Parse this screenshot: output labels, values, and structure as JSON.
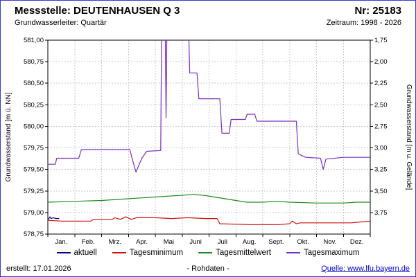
{
  "header": {
    "title": "Messstelle: DEUTENHAUSEN Q 3",
    "number": "Nr: 25183",
    "aquifer": "Grundwasserleiter: Quartär",
    "period": "Zeitraum: 1998 - 2026"
  },
  "footer": {
    "created": "erstellt: 17.01.2026",
    "center": "- Rohdaten -",
    "source": "Quelle: www.lfu.bayern.de"
  },
  "colors": {
    "frame": "#3939cc",
    "link": "#0000cc",
    "grid": "#c9c9c9",
    "axis": "#000000"
  },
  "chart_data": {
    "type": "line",
    "title": "",
    "x_axis": {
      "tick_labels": [
        "Jan.",
        "Feb.",
        "Mrz.",
        "Apr.",
        "Mai",
        "Juni",
        "Juli",
        "Aug.",
        "Sept.",
        "Okt.",
        "Nov.",
        "Dez."
      ],
      "range_months": [
        0,
        12
      ]
    },
    "y_axis_left": {
      "label": "Grundwasserstand [m ü. NN]",
      "range": [
        578.75,
        581.0
      ],
      "tick_step": 0.25,
      "tick_labels": [
        "581,00",
        "580,75",
        "580,50",
        "580,25",
        "580,00",
        "579,75",
        "579,50",
        "579,25",
        "579,00",
        "578,75"
      ]
    },
    "y_axis_right": {
      "label": "Grundwasserstand [m u. Gelände]",
      "tick_labels": [
        "1,75",
        "2,00",
        "2,25",
        "2,50",
        "2,75",
        "3,00",
        "3,25",
        "3,50",
        "3,75"
      ]
    },
    "grid": true,
    "legend_position": "bottom",
    "series": [
      {
        "name": "aktuell",
        "color": "#00008b",
        "points": [
          [
            0.02,
            578.92
          ],
          [
            0.08,
            578.95
          ],
          [
            0.12,
            578.93
          ],
          [
            0.2,
            578.94
          ],
          [
            0.3,
            578.93
          ],
          [
            0.42,
            578.93
          ]
        ]
      },
      {
        "name": "Tagesminimum",
        "color": "#cc1111",
        "points": [
          [
            0,
            578.91
          ],
          [
            0.5,
            578.9
          ],
          [
            1.6,
            578.9
          ],
          [
            1.7,
            578.92
          ],
          [
            2.4,
            578.92
          ],
          [
            2.5,
            578.94
          ],
          [
            2.7,
            578.92
          ],
          [
            2.9,
            578.95
          ],
          [
            3.1,
            578.92
          ],
          [
            3.3,
            578.94
          ],
          [
            4.0,
            578.94
          ],
          [
            4.6,
            578.93
          ],
          [
            5.2,
            578.94
          ],
          [
            5.9,
            578.93
          ],
          [
            6.3,
            578.93
          ],
          [
            6.4,
            578.87
          ],
          [
            7.5,
            578.86
          ],
          [
            8.6,
            578.86
          ],
          [
            9.0,
            578.87
          ],
          [
            9.1,
            578.9
          ],
          [
            9.25,
            578.87
          ],
          [
            9.4,
            578.88
          ],
          [
            10.5,
            578.88
          ],
          [
            11.3,
            578.88
          ],
          [
            11.6,
            578.89
          ],
          [
            12,
            578.9
          ]
        ]
      },
      {
        "name": "Tagesmittelwert",
        "color": "#1e8a1e",
        "points": [
          [
            0,
            579.12
          ],
          [
            1.0,
            579.13
          ],
          [
            2.0,
            579.14
          ],
          [
            3.0,
            579.16
          ],
          [
            3.5,
            579.17
          ],
          [
            4.0,
            579.18
          ],
          [
            4.5,
            579.19
          ],
          [
            5.0,
            579.2
          ],
          [
            5.4,
            579.21
          ],
          [
            5.8,
            579.2
          ],
          [
            6.2,
            579.18
          ],
          [
            6.6,
            579.16
          ],
          [
            7.0,
            579.14
          ],
          [
            7.4,
            579.12
          ],
          [
            8.0,
            579.12
          ],
          [
            8.5,
            579.13
          ],
          [
            9.0,
            579.12
          ],
          [
            10.0,
            579.11
          ],
          [
            11.0,
            579.11
          ],
          [
            11.5,
            579.12
          ],
          [
            12,
            579.12
          ]
        ]
      },
      {
        "name": "Tagesmaximum",
        "color": "#7b2fbe",
        "points": [
          [
            0,
            579.56
          ],
          [
            0.28,
            579.56
          ],
          [
            0.33,
            579.63
          ],
          [
            1.15,
            579.63
          ],
          [
            1.25,
            579.73
          ],
          [
            3.05,
            579.73
          ],
          [
            3.18,
            579.58
          ],
          [
            3.28,
            579.47
          ],
          [
            3.5,
            579.63
          ],
          [
            3.68,
            579.71
          ],
          [
            4.2,
            579.72
          ],
          [
            4.24,
            581.4
          ],
          [
            4.36,
            581.4
          ],
          [
            4.4,
            580.1
          ],
          [
            4.44,
            581.4
          ],
          [
            5.22,
            581.4
          ],
          [
            5.28,
            580.62
          ],
          [
            5.55,
            580.62
          ],
          [
            5.62,
            580.32
          ],
          [
            6.4,
            580.32
          ],
          [
            6.48,
            579.92
          ],
          [
            6.75,
            579.92
          ],
          [
            6.82,
            580.08
          ],
          [
            7.35,
            580.08
          ],
          [
            7.42,
            580.14
          ],
          [
            7.7,
            580.14
          ],
          [
            7.78,
            580.06
          ],
          [
            9.25,
            580.06
          ],
          [
            9.32,
            579.68
          ],
          [
            9.6,
            579.64
          ],
          [
            10.15,
            579.63
          ],
          [
            10.25,
            579.5
          ],
          [
            10.35,
            579.62
          ],
          [
            11.0,
            579.64
          ],
          [
            12,
            579.64
          ]
        ]
      }
    ]
  }
}
